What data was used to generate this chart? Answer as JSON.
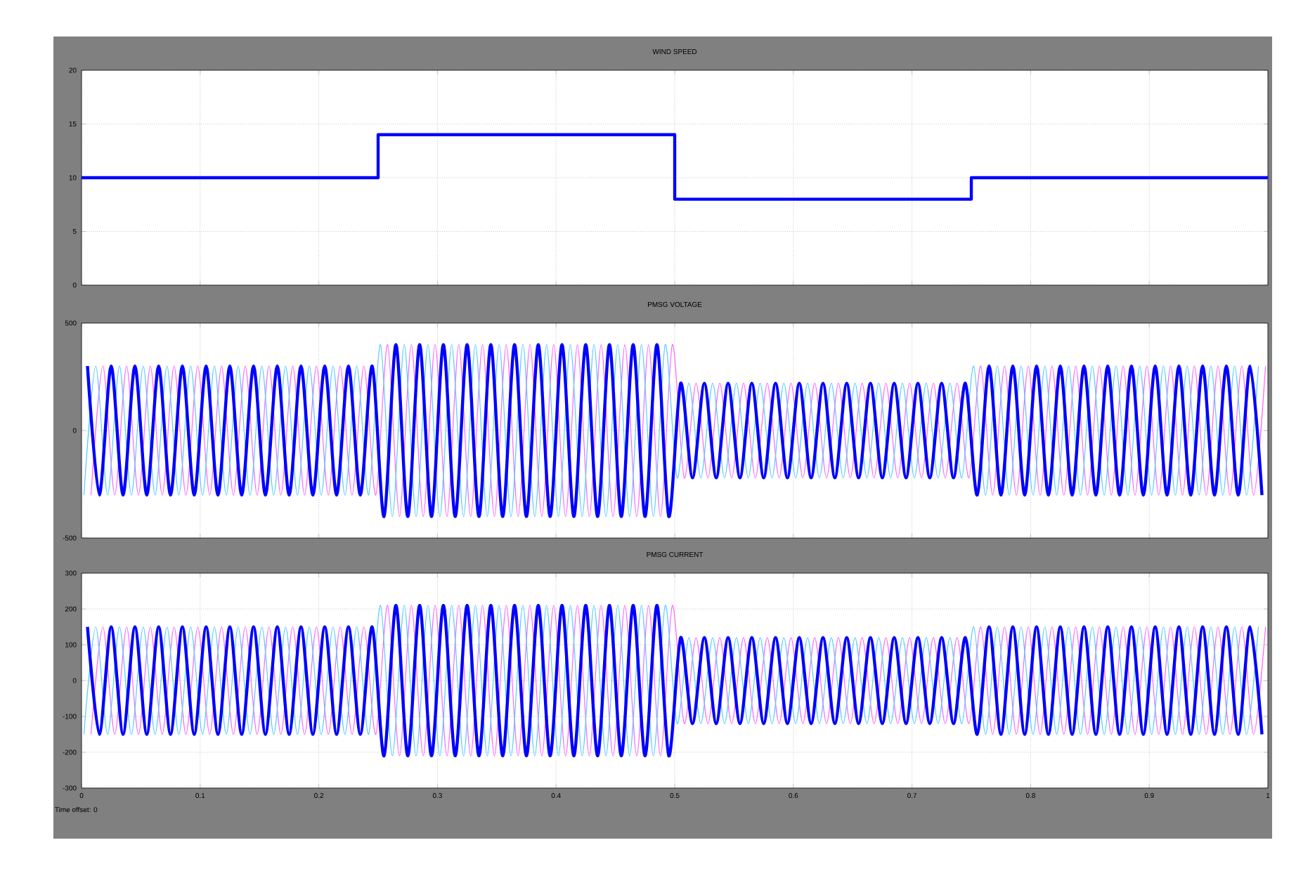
{
  "chart_data": [
    {
      "type": "step",
      "title": "WIND SPEED",
      "xlim": [
        0,
        1
      ],
      "ylim": [
        0,
        20
      ],
      "xticks": [
        0,
        0.1,
        0.2,
        0.3,
        0.4,
        0.5,
        0.6,
        0.7,
        0.8,
        0.9,
        1
      ],
      "yticks": [
        0,
        5,
        10,
        15,
        20
      ],
      "grid": true,
      "tick_labels": "y",
      "series": [
        {
          "color": "#0000ff",
          "x": [
            0,
            0.25,
            0.5,
            0.75,
            1
          ],
          "values": [
            10,
            14,
            8,
            10,
            10
          ]
        }
      ]
    },
    {
      "type": "line",
      "title": "PMSG VOLTAGE",
      "xlim": [
        0,
        1
      ],
      "ylim": [
        -500,
        500
      ],
      "xticks": [
        0,
        0.1,
        0.2,
        0.3,
        0.4,
        0.5,
        0.6,
        0.7,
        0.8,
        0.9,
        1
      ],
      "yticks": [
        -500,
        0,
        500
      ],
      "grid": true,
      "tick_labels": "y",
      "series": [
        {
          "color": "#0000ff",
          "x": [
            0.005,
            0.015,
            0.025,
            0.035,
            0.045,
            0.055,
            0.065,
            0.075,
            0.085,
            0.095,
            0.105,
            0.115,
            0.125,
            0.135,
            0.145,
            0.155,
            0.165,
            0.175,
            0.185,
            0.195,
            0.205,
            0.215,
            0.225,
            0.235,
            0.245,
            0.255,
            0.265,
            0.275,
            0.285,
            0.295,
            0.305,
            0.315,
            0.325,
            0.335,
            0.345,
            0.355,
            0.365,
            0.375,
            0.385,
            0.395,
            0.405,
            0.415,
            0.425,
            0.435,
            0.445,
            0.455,
            0.465,
            0.475,
            0.485,
            0.495,
            0.505,
            0.515,
            0.525,
            0.535,
            0.545,
            0.555,
            0.565,
            0.575,
            0.585,
            0.595,
            0.605,
            0.615,
            0.625,
            0.635,
            0.645,
            0.655,
            0.665,
            0.675,
            0.685,
            0.695,
            0.705,
            0.715,
            0.725,
            0.735,
            0.745,
            0.755,
            0.765,
            0.775,
            0.785,
            0.795,
            0.805,
            0.815,
            0.825,
            0.835,
            0.845,
            0.855,
            0.865,
            0.875,
            0.885,
            0.895,
            0.905,
            0.915,
            0.925,
            0.935,
            0.945,
            0.955,
            0.965,
            0.975,
            0.985,
            0.995
          ],
          "values": [
            300,
            -300,
            300,
            -300,
            300,
            -300,
            300,
            -300,
            300,
            -300,
            300,
            -300,
            300,
            -300,
            300,
            -300,
            300,
            -300,
            300,
            -300,
            300,
            -300,
            300,
            -300,
            300,
            -400,
            400,
            -400,
            400,
            -400,
            400,
            -400,
            400,
            -400,
            400,
            -400,
            400,
            -400,
            400,
            -400,
            400,
            -400,
            400,
            -400,
            400,
            -400,
            400,
            -400,
            400,
            -400,
            220,
            -220,
            220,
            -220,
            220,
            -220,
            220,
            -220,
            220,
            -220,
            220,
            -220,
            220,
            -220,
            220,
            -220,
            220,
            -220,
            220,
            -220,
            220,
            -220,
            220,
            -220,
            220,
            -300,
            300,
            -300,
            300,
            -300,
            300,
            -300,
            300,
            -300,
            300,
            -300,
            300,
            -300,
            300,
            -300,
            300,
            -300,
            300,
            -300,
            300,
            -300,
            300,
            -300,
            300,
            -300
          ]
        },
        {
          "color": "#55ccff",
          "x": [
            0.002,
            0.012,
            0.022,
            0.032,
            0.042,
            0.052,
            0.062,
            0.072,
            0.082,
            0.092,
            0.102,
            0.112,
            0.122,
            0.132,
            0.142,
            0.152,
            0.162,
            0.172,
            0.182,
            0.192,
            0.202,
            0.212,
            0.222,
            0.232,
            0.242,
            0.252,
            0.262,
            0.272,
            0.282,
            0.292,
            0.302,
            0.312,
            0.322,
            0.332,
            0.342,
            0.352,
            0.362,
            0.372,
            0.382,
            0.392,
            0.402,
            0.412,
            0.422,
            0.432,
            0.442,
            0.452,
            0.462,
            0.472,
            0.482,
            0.492,
            0.502,
            0.512,
            0.522,
            0.532,
            0.542,
            0.552,
            0.562,
            0.572,
            0.582,
            0.592,
            0.602,
            0.612,
            0.622,
            0.632,
            0.642,
            0.652,
            0.662,
            0.672,
            0.682,
            0.692,
            0.702,
            0.712,
            0.722,
            0.732,
            0.742,
            0.752,
            0.762,
            0.772,
            0.782,
            0.792,
            0.802,
            0.812,
            0.822,
            0.832,
            0.842,
            0.852,
            0.862,
            0.872,
            0.882,
            0.892,
            0.902,
            0.912,
            0.922,
            0.932,
            0.942,
            0.952,
            0.962,
            0.972,
            0.982,
            0.992
          ],
          "values": [
            -300,
            300,
            -300,
            300,
            -300,
            300,
            -300,
            300,
            -300,
            300,
            -300,
            300,
            -300,
            300,
            -300,
            300,
            -300,
            300,
            -300,
            300,
            -300,
            300,
            -300,
            300,
            -300,
            400,
            -400,
            400,
            -400,
            400,
            -400,
            400,
            -400,
            400,
            -400,
            400,
            -400,
            400,
            -400,
            400,
            -400,
            400,
            -400,
            400,
            -400,
            400,
            -400,
            400,
            -400,
            400,
            -220,
            220,
            -220,
            220,
            -220,
            220,
            -220,
            220,
            -220,
            220,
            -220,
            220,
            -220,
            220,
            -220,
            220,
            -220,
            220,
            -220,
            220,
            -220,
            220,
            -220,
            220,
            -220,
            300,
            -300,
            300,
            -300,
            300,
            -300,
            300,
            -300,
            300,
            -300,
            300,
            -300,
            300,
            -300,
            300,
            -300,
            300,
            -300,
            300,
            -300,
            300,
            -300,
            300,
            -300,
            300
          ]
        },
        {
          "color": "#ff66ff",
          "x": [
            0.008,
            0.018,
            0.028,
            0.038,
            0.048,
            0.058,
            0.068,
            0.078,
            0.088,
            0.098,
            0.108,
            0.118,
            0.128,
            0.138,
            0.148,
            0.158,
            0.168,
            0.178,
            0.188,
            0.198,
            0.208,
            0.218,
            0.228,
            0.238,
            0.248,
            0.258,
            0.268,
            0.278,
            0.288,
            0.298,
            0.308,
            0.318,
            0.328,
            0.338,
            0.348,
            0.358,
            0.368,
            0.378,
            0.388,
            0.398,
            0.408,
            0.418,
            0.428,
            0.438,
            0.448,
            0.458,
            0.468,
            0.478,
            0.488,
            0.498,
            0.508,
            0.518,
            0.528,
            0.538,
            0.548,
            0.558,
            0.568,
            0.578,
            0.588,
            0.598,
            0.608,
            0.618,
            0.628,
            0.638,
            0.648,
            0.658,
            0.668,
            0.678,
            0.688,
            0.698,
            0.708,
            0.718,
            0.728,
            0.738,
            0.748,
            0.758,
            0.768,
            0.778,
            0.788,
            0.798,
            0.808,
            0.818,
            0.828,
            0.838,
            0.848,
            0.858,
            0.868,
            0.878,
            0.888,
            0.898,
            0.908,
            0.918,
            0.928,
            0.938,
            0.948,
            0.958,
            0.968,
            0.978,
            0.988,
            0.998
          ],
          "values": [
            -300,
            300,
            -300,
            300,
            -300,
            300,
            -300,
            300,
            -300,
            300,
            -300,
            300,
            -300,
            300,
            -300,
            300,
            -300,
            300,
            -300,
            300,
            -300,
            300,
            -300,
            300,
            -300,
            400,
            -400,
            400,
            -400,
            400,
            -400,
            400,
            -400,
            400,
            -400,
            400,
            -400,
            400,
            -400,
            400,
            -400,
            400,
            -400,
            400,
            -400,
            400,
            -400,
            400,
            -400,
            400,
            -220,
            220,
            -220,
            220,
            -220,
            220,
            -220,
            220,
            -220,
            220,
            -220,
            220,
            -220,
            220,
            -220,
            220,
            -220,
            220,
            -220,
            220,
            -220,
            220,
            -220,
            220,
            -220,
            300,
            -300,
            300,
            -300,
            300,
            -300,
            300,
            -300,
            300,
            -300,
            300,
            -300,
            300,
            -300,
            300,
            -300,
            300,
            -300,
            300,
            -300,
            300,
            -300,
            300,
            -300,
            300
          ]
        }
      ]
    },
    {
      "type": "line",
      "title": "PMSG CURRENT",
      "xlim": [
        0,
        1
      ],
      "ylim": [
        -300,
        300
      ],
      "xticks": [
        0,
        0.1,
        0.2,
        0.3,
        0.4,
        0.5,
        0.6,
        0.7,
        0.8,
        0.9,
        1
      ],
      "yticks": [
        -300,
        -200,
        -100,
        0,
        100,
        200,
        300
      ],
      "grid": true,
      "annotations": [
        "Time offset:  0"
      ],
      "series": [
        {
          "color": "#0000ff",
          "x": [
            0.005,
            0.015,
            0.025,
            0.035,
            0.045,
            0.055,
            0.065,
            0.075,
            0.085,
            0.095,
            0.105,
            0.115,
            0.125,
            0.135,
            0.145,
            0.155,
            0.165,
            0.175,
            0.185,
            0.195,
            0.205,
            0.215,
            0.225,
            0.235,
            0.245,
            0.255,
            0.265,
            0.275,
            0.285,
            0.295,
            0.305,
            0.315,
            0.325,
            0.335,
            0.345,
            0.355,
            0.365,
            0.375,
            0.385,
            0.395,
            0.405,
            0.415,
            0.425,
            0.435,
            0.445,
            0.455,
            0.465,
            0.475,
            0.485,
            0.495,
            0.505,
            0.515,
            0.525,
            0.535,
            0.545,
            0.555,
            0.565,
            0.575,
            0.585,
            0.595,
            0.605,
            0.615,
            0.625,
            0.635,
            0.645,
            0.655,
            0.665,
            0.675,
            0.685,
            0.695,
            0.705,
            0.715,
            0.725,
            0.735,
            0.745,
            0.755,
            0.765,
            0.775,
            0.785,
            0.795,
            0.805,
            0.815,
            0.825,
            0.835,
            0.845,
            0.855,
            0.865,
            0.875,
            0.885,
            0.895,
            0.905,
            0.915,
            0.925,
            0.935,
            0.945,
            0.955,
            0.965,
            0.975,
            0.985,
            0.995
          ],
          "values": [
            150,
            -150,
            150,
            -150,
            150,
            -150,
            150,
            -150,
            150,
            -150,
            150,
            -150,
            150,
            -150,
            150,
            -150,
            150,
            -150,
            150,
            -150,
            150,
            -150,
            150,
            -150,
            150,
            -210,
            210,
            -210,
            210,
            -210,
            210,
            -210,
            210,
            -210,
            210,
            -210,
            210,
            -210,
            210,
            -210,
            210,
            -210,
            210,
            -210,
            210,
            -210,
            210,
            -210,
            210,
            -210,
            120,
            -120,
            120,
            -120,
            120,
            -120,
            120,
            -120,
            120,
            -120,
            120,
            -120,
            120,
            -120,
            120,
            -120,
            120,
            -120,
            120,
            -120,
            120,
            -120,
            120,
            -120,
            120,
            -150,
            150,
            -150,
            150,
            -150,
            150,
            -150,
            150,
            -150,
            150,
            -150,
            150,
            -150,
            150,
            -150,
            150,
            -150,
            150,
            -150,
            150,
            -150,
            150,
            -150,
            150,
            -150
          ]
        },
        {
          "color": "#55ccff",
          "x": [
            0.002,
            0.012,
            0.022,
            0.032,
            0.042,
            0.052,
            0.062,
            0.072,
            0.082,
            0.092,
            0.102,
            0.112,
            0.122,
            0.132,
            0.142,
            0.152,
            0.162,
            0.172,
            0.182,
            0.192,
            0.202,
            0.212,
            0.222,
            0.232,
            0.242,
            0.252,
            0.262,
            0.272,
            0.282,
            0.292,
            0.302,
            0.312,
            0.322,
            0.332,
            0.342,
            0.352,
            0.362,
            0.372,
            0.382,
            0.392,
            0.402,
            0.412,
            0.422,
            0.432,
            0.442,
            0.452,
            0.462,
            0.472,
            0.482,
            0.492,
            0.502,
            0.512,
            0.522,
            0.532,
            0.542,
            0.552,
            0.562,
            0.572,
            0.582,
            0.592,
            0.602,
            0.612,
            0.622,
            0.632,
            0.642,
            0.652,
            0.662,
            0.672,
            0.682,
            0.692,
            0.702,
            0.712,
            0.722,
            0.732,
            0.742,
            0.752,
            0.762,
            0.772,
            0.782,
            0.792,
            0.802,
            0.812,
            0.822,
            0.832,
            0.842,
            0.852,
            0.862,
            0.872,
            0.882,
            0.892,
            0.902,
            0.912,
            0.922,
            0.932,
            0.942,
            0.952,
            0.962,
            0.972,
            0.982,
            0.992
          ],
          "values": [
            -150,
            150,
            -150,
            150,
            -150,
            150,
            -150,
            150,
            -150,
            150,
            -150,
            150,
            -150,
            150,
            -150,
            150,
            -150,
            150,
            -150,
            150,
            -150,
            150,
            -150,
            150,
            -150,
            210,
            -210,
            210,
            -210,
            210,
            -210,
            210,
            -210,
            210,
            -210,
            210,
            -210,
            210,
            -210,
            210,
            -210,
            210,
            -210,
            210,
            -210,
            210,
            -210,
            210,
            -210,
            210,
            -120,
            120,
            -120,
            120,
            -120,
            120,
            -120,
            120,
            -120,
            120,
            -120,
            120,
            -120,
            120,
            -120,
            120,
            -120,
            120,
            -120,
            120,
            -120,
            120,
            -120,
            120,
            -120,
            150,
            -150,
            150,
            -150,
            150,
            -150,
            150,
            -150,
            150,
            -150,
            150,
            -150,
            150,
            -150,
            150,
            -150,
            150,
            -150,
            150,
            -150,
            150,
            -150,
            150,
            -150,
            150
          ]
        },
        {
          "color": "#ff66ff",
          "x": [
            0.008,
            0.018,
            0.028,
            0.038,
            0.048,
            0.058,
            0.068,
            0.078,
            0.088,
            0.098,
            0.108,
            0.118,
            0.128,
            0.138,
            0.148,
            0.158,
            0.168,
            0.178,
            0.188,
            0.198,
            0.208,
            0.218,
            0.228,
            0.238,
            0.248,
            0.258,
            0.268,
            0.278,
            0.288,
            0.298,
            0.308,
            0.318,
            0.328,
            0.338,
            0.348,
            0.358,
            0.368,
            0.378,
            0.388,
            0.398,
            0.408,
            0.418,
            0.428,
            0.438,
            0.448,
            0.458,
            0.468,
            0.478,
            0.488,
            0.498,
            0.508,
            0.518,
            0.528,
            0.538,
            0.548,
            0.558,
            0.568,
            0.578,
            0.588,
            0.598,
            0.608,
            0.618,
            0.628,
            0.638,
            0.648,
            0.658,
            0.668,
            0.678,
            0.688,
            0.698,
            0.708,
            0.718,
            0.728,
            0.738,
            0.748,
            0.758,
            0.768,
            0.778,
            0.788,
            0.798,
            0.808,
            0.818,
            0.828,
            0.838,
            0.848,
            0.858,
            0.868,
            0.878,
            0.888,
            0.898,
            0.908,
            0.918,
            0.928,
            0.938,
            0.948,
            0.958,
            0.968,
            0.978,
            0.988,
            0.998
          ],
          "values": [
            -150,
            150,
            -150,
            150,
            -150,
            150,
            -150,
            150,
            -150,
            150,
            -150,
            150,
            -150,
            150,
            -150,
            150,
            -150,
            150,
            -150,
            150,
            -150,
            150,
            -150,
            150,
            -150,
            210,
            -210,
            210,
            -210,
            210,
            -210,
            210,
            -210,
            210,
            -210,
            210,
            -210,
            210,
            -210,
            210,
            -210,
            210,
            -210,
            210,
            -210,
            210,
            -210,
            210,
            -210,
            210,
            -120,
            120,
            -120,
            120,
            -120,
            120,
            -120,
            120,
            -120,
            120,
            -120,
            120,
            -120,
            120,
            -120,
            120,
            -120,
            120,
            -120,
            120,
            -120,
            120,
            -120,
            120,
            -120,
            150,
            -150,
            150,
            -150,
            150,
            -150,
            150,
            -150,
            150,
            -150,
            150,
            -150,
            150,
            -150,
            150,
            -150,
            150,
            -150,
            150,
            -150,
            150,
            -150,
            150,
            -150,
            150
          ]
        }
      ]
    }
  ]
}
